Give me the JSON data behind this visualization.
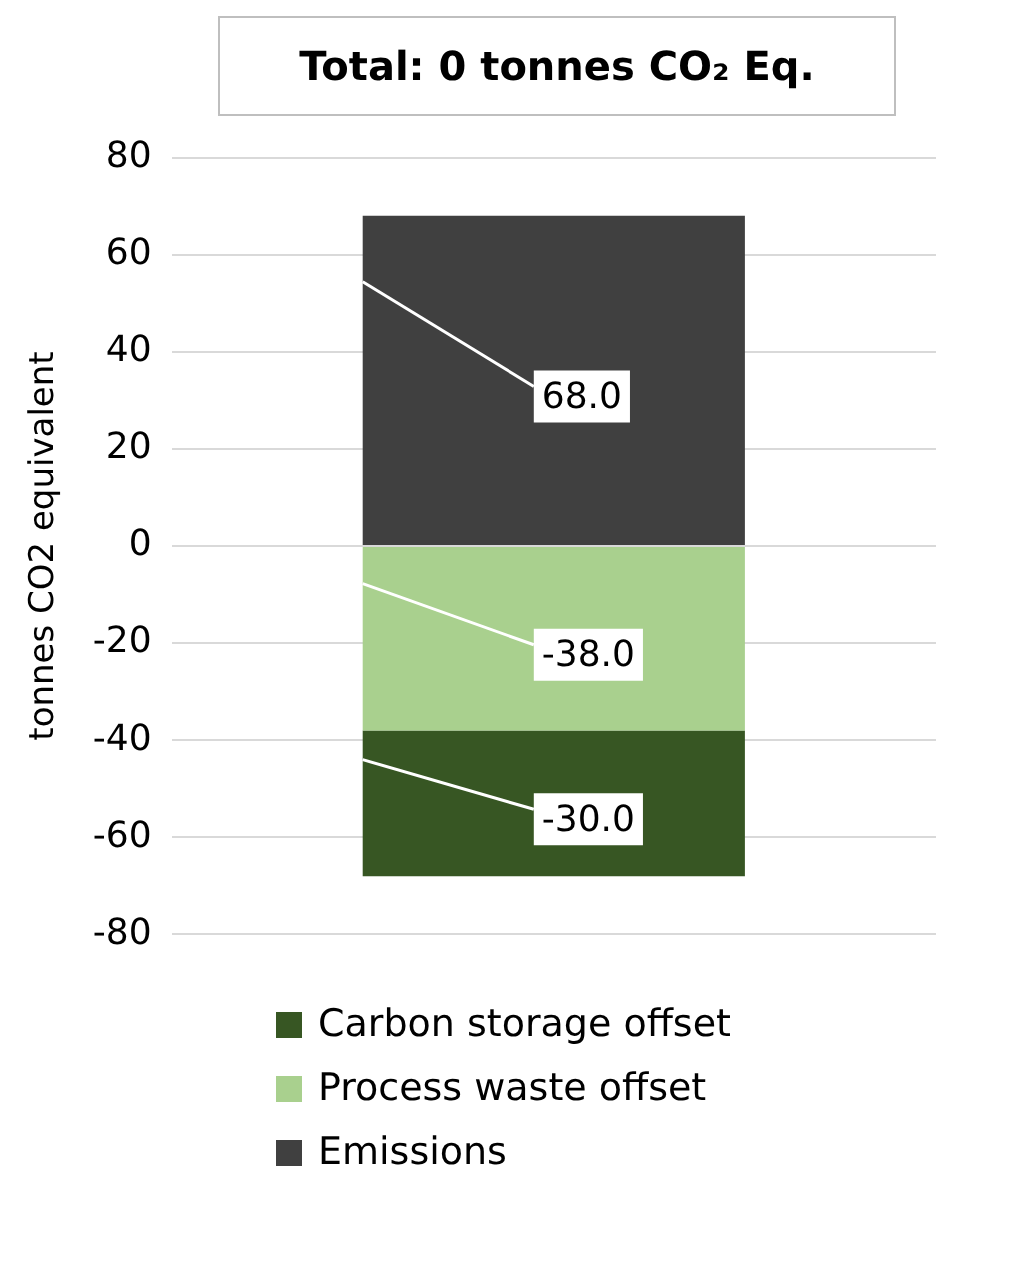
{
  "chart_data": {
    "type": "bar",
    "title": "Total: 0 tonnes CO₂ Eq.",
    "ylabel": "tonnes CO2 equivalent",
    "categories": [
      null
    ],
    "stacked": true,
    "series": [
      {
        "name": "Process waste offset",
        "color": "#a9d08e",
        "values": [
          -38
        ],
        "value_labels": [
          "-38.0"
        ]
      },
      {
        "name": "Carbon storage offset",
        "color": "#375623",
        "values": [
          -30
        ],
        "value_labels": [
          "-30.0"
        ]
      },
      {
        "name": "Emissions",
        "color": "#404040",
        "values": [
          68
        ],
        "value_labels": [
          "68.0"
        ]
      }
    ],
    "ylim": [
      -80,
      80
    ],
    "yticks": [
      -80,
      -60,
      -40,
      -20,
      0,
      20,
      40,
      60,
      80
    ],
    "grid": "y",
    "legend": "bottom",
    "tick_labels": "y"
  }
}
